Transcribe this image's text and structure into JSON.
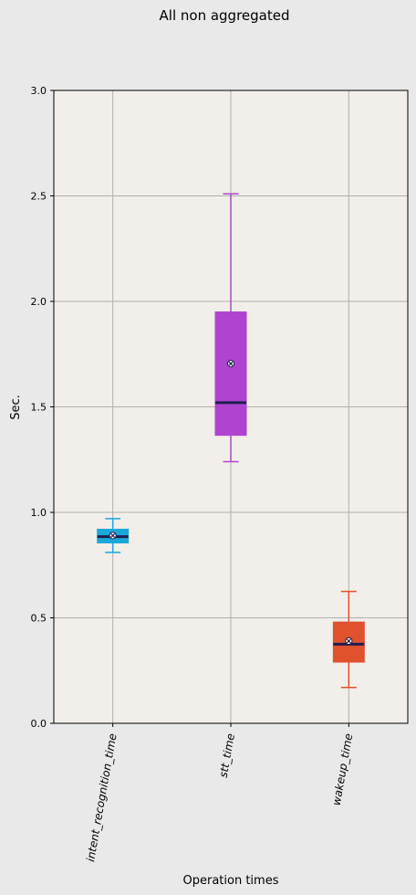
{
  "chart_data": {
    "type": "box",
    "title": "All non aggregated",
    "xlabel": "Operation times",
    "ylabel": "Sec.",
    "ylim": [
      0,
      3.0
    ],
    "yticks": [
      "0.0",
      "0.5",
      "1.0",
      "1.5",
      "2.0",
      "2.5",
      "3.0"
    ],
    "grid": true,
    "categories": [
      "intent_recognition_time",
      "stt_time",
      "wakeup_time"
    ],
    "series": [
      {
        "category": "intent_recognition_time",
        "color": "#1ba8d8",
        "whisker_low": 0.81,
        "q1": 0.855,
        "median": 0.885,
        "q3": 0.92,
        "whisker_high": 0.97,
        "mean": 0.89
      },
      {
        "category": "stt_time",
        "color": "#b044d0",
        "whisker_low": 1.24,
        "q1": 1.365,
        "median": 1.52,
        "q3": 1.95,
        "whisker_high": 2.51,
        "mean": 1.705
      },
      {
        "category": "wakeup_time",
        "color": "#e0512e",
        "whisker_low": 0.17,
        "q1": 0.29,
        "median": 0.375,
        "q3": 0.48,
        "whisker_high": 0.625,
        "mean": 0.39
      }
    ],
    "colors": {
      "figure_bg": "#e9e9e9",
      "plot_bg": "#f2eeea",
      "grid": "#b0b0b0",
      "median": "#1e1e50"
    }
  }
}
